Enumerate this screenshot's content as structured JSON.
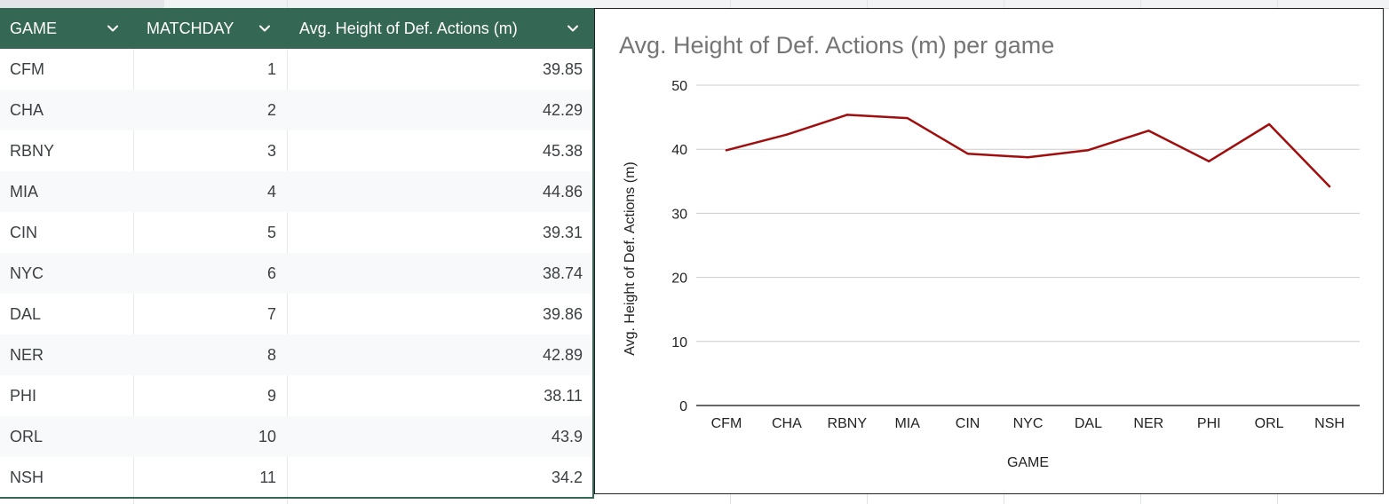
{
  "table": {
    "headers": {
      "game": "GAME",
      "matchday": "MATCHDAY",
      "avg": "Avg. Height of Def. Actions (m)"
    },
    "header_bg": "#356854",
    "rows": [
      {
        "game": "CFM",
        "matchday": "1",
        "avg": "39.85"
      },
      {
        "game": "CHA",
        "matchday": "2",
        "avg": "42.29"
      },
      {
        "game": "RBNY",
        "matchday": "3",
        "avg": "45.38"
      },
      {
        "game": "MIA",
        "matchday": "4",
        "avg": "44.86"
      },
      {
        "game": "CIN",
        "matchday": "5",
        "avg": "39.31"
      },
      {
        "game": "NYC",
        "matchday": "6",
        "avg": "38.74"
      },
      {
        "game": "DAL",
        "matchday": "7",
        "avg": "39.86"
      },
      {
        "game": "NER",
        "matchday": "8",
        "avg": "42.89"
      },
      {
        "game": "PHI",
        "matchday": "9",
        "avg": "38.11"
      },
      {
        "game": "ORL",
        "matchday": "10",
        "avg": "43.9"
      },
      {
        "game": "NSH",
        "matchday": "11",
        "avg": "34.2"
      }
    ]
  },
  "chart_data": {
    "type": "line",
    "title": "Avg. Height of Def. Actions (m) per game",
    "xlabel": "GAME",
    "ylabel": "Avg. Height of Def. Actions (m)",
    "categories": [
      "CFM",
      "CHA",
      "RBNY",
      "MIA",
      "CIN",
      "NYC",
      "DAL",
      "NER",
      "PHI",
      "ORL",
      "NSH"
    ],
    "values": [
      39.85,
      42.29,
      45.38,
      44.86,
      39.31,
      38.74,
      39.86,
      42.89,
      38.11,
      43.9,
      34.2
    ],
    "ylim": [
      0,
      50
    ],
    "yticks": [
      "0",
      "10",
      "20",
      "30",
      "40",
      "50"
    ],
    "grid": true,
    "legend": "none",
    "line_color": "#a10e0e"
  }
}
